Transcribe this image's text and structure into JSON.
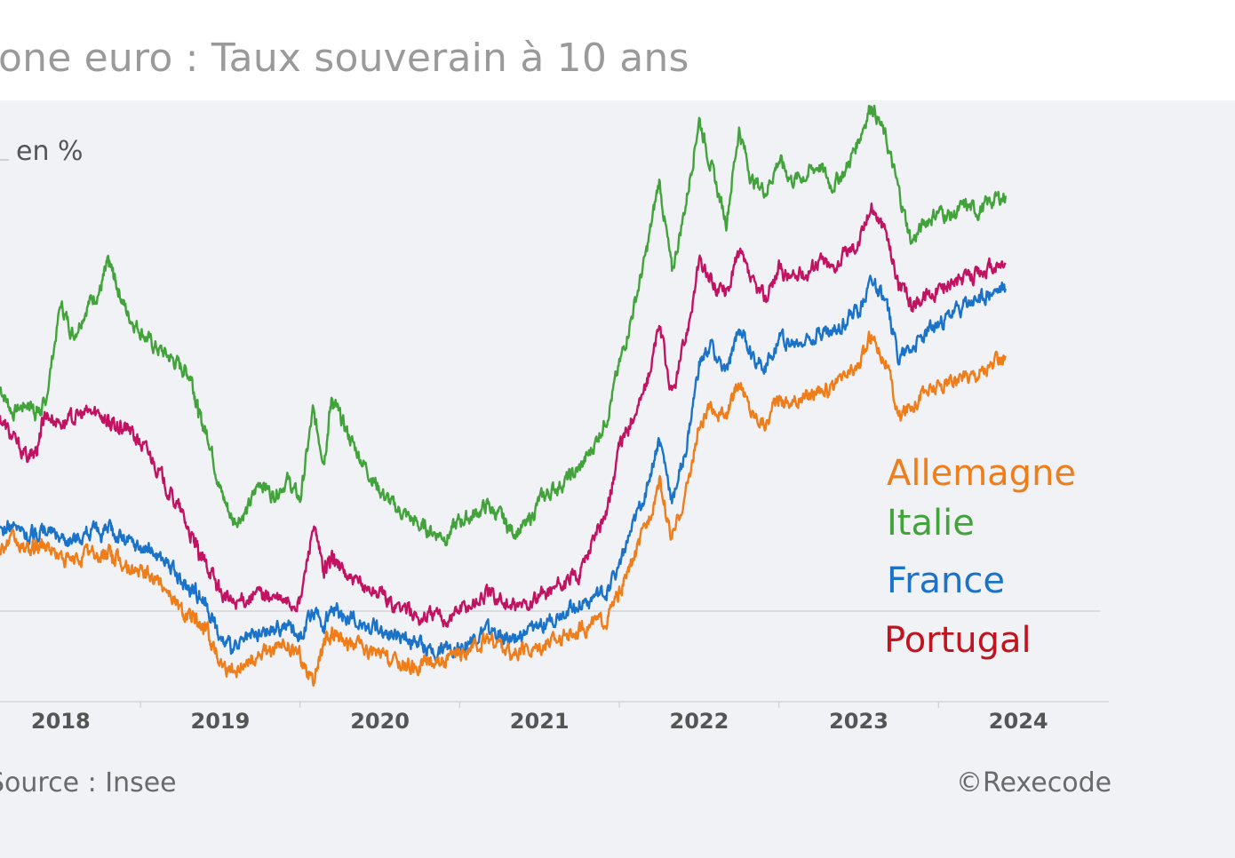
{
  "header": {
    "title": "one euro : Taux souverain à 10 ans"
  },
  "footer": {
    "source": "Source : Insee",
    "copyright": "©Rexecode"
  },
  "colors": {
    "Allemagne": "#ee7d1a",
    "Italie": "#41a33a",
    "France": "#1a73c8",
    "Portugal": "#c21262",
    "Portugal_label": "#c0141e",
    "axis_text": "#555555",
    "gridline": "#d6d6d6"
  },
  "chart_data": {
    "type": "line",
    "title": "one euro : Taux souverain à 10 ans",
    "ylabel": "en %",
    "xlabel": "",
    "x_tick_labels": [
      "2018",
      "2019",
      "2020",
      "2021",
      "2022",
      "2023",
      "2024"
    ],
    "xlim": [
      2017.62,
      2024.5
    ],
    "ylim": [
      -0.85,
      5.0
    ],
    "grid": false,
    "zero_line": true,
    "legend_position": "right",
    "legend_order": [
      "Allemagne",
      "Italie",
      "France",
      "Portugal"
    ],
    "series": [
      {
        "name": "Italie",
        "x": [
          2017.62,
          2017.7,
          2017.8,
          2017.85,
          2017.9,
          2018.0,
          2018.08,
          2018.17,
          2018.25,
          2018.3,
          2018.35,
          2018.42,
          2018.5,
          2018.58,
          2018.67,
          2018.75,
          2018.82,
          2018.87,
          2018.93,
          2019.0,
          2019.08,
          2019.17,
          2019.25,
          2019.33,
          2019.42,
          2019.5,
          2019.58,
          2019.65,
          2019.7,
          2019.75,
          2019.83,
          2019.92,
          2020.0,
          2020.08,
          2020.17,
          2020.25,
          2020.33,
          2020.42,
          2020.5,
          2020.58,
          2020.67,
          2020.75,
          2020.83,
          2020.92,
          2021.0,
          2021.08,
          2021.17,
          2021.25,
          2021.33,
          2021.42,
          2021.5,
          2021.58,
          2021.67,
          2021.75,
          2021.83,
          2021.92,
          2022.0,
          2022.08,
          2022.17,
          2022.25,
          2022.33,
          2022.42,
          2022.5,
          2022.58,
          2022.67,
          2022.75,
          2022.83,
          2022.92,
          2023.0,
          2023.08,
          2023.17,
          2023.25,
          2023.33,
          2023.42,
          2023.5,
          2023.58,
          2023.67,
          2023.75,
          2023.83,
          2023.92
        ],
        "values": [
          2.2,
          1.95,
          2.05,
          1.95,
          2.0,
          3.0,
          2.7,
          3.0,
          3.15,
          3.4,
          3.2,
          2.9,
          2.75,
          2.6,
          2.5,
          2.4,
          2.3,
          1.9,
          1.7,
          1.2,
          0.9,
          1.0,
          1.3,
          1.15,
          1.3,
          1.1,
          1.95,
          1.5,
          2.1,
          1.9,
          1.65,
          1.4,
          1.2,
          1.05,
          0.95,
          0.85,
          0.8,
          0.75,
          0.9,
          0.95,
          1.05,
          0.95,
          0.8,
          0.85,
          1.1,
          1.2,
          1.3,
          1.4,
          1.6,
          1.9,
          2.4,
          2.9,
          3.5,
          4.2,
          3.3,
          4.0,
          4.8,
          4.3,
          3.8,
          4.7,
          4.2,
          4.1,
          4.4,
          4.2,
          4.25,
          4.35,
          4.15,
          4.3,
          4.6,
          4.95,
          4.6,
          4.1,
          3.6,
          3.8,
          3.9,
          3.85,
          3.95,
          3.9,
          4.0,
          4.05
        ]
      },
      {
        "name": "Portugal",
        "x": [
          2017.62,
          2017.7,
          2017.8,
          2017.85,
          2017.9,
          2018.0,
          2018.08,
          2018.17,
          2018.25,
          2018.3,
          2018.35,
          2018.42,
          2018.5,
          2018.58,
          2018.67,
          2018.75,
          2018.82,
          2018.87,
          2018.93,
          2019.0,
          2019.08,
          2019.17,
          2019.25,
          2019.33,
          2019.42,
          2019.5,
          2019.58,
          2019.65,
          2019.7,
          2019.75,
          2019.83,
          2019.92,
          2020.0,
          2020.08,
          2020.17,
          2020.25,
          2020.33,
          2020.42,
          2020.5,
          2020.58,
          2020.67,
          2020.75,
          2020.83,
          2020.92,
          2021.0,
          2021.08,
          2021.17,
          2021.25,
          2021.33,
          2021.42,
          2021.5,
          2021.58,
          2021.67,
          2021.75,
          2021.83,
          2021.92,
          2022.0,
          2022.08,
          2022.17,
          2022.25,
          2022.33,
          2022.42,
          2022.5,
          2022.58,
          2022.67,
          2022.75,
          2022.83,
          2022.92,
          2023.0,
          2023.08,
          2023.17,
          2023.25,
          2023.33,
          2023.42,
          2023.5,
          2023.58,
          2023.67,
          2023.75,
          2023.83,
          2023.92
        ],
        "values": [
          1.9,
          1.7,
          1.5,
          1.6,
          1.95,
          1.85,
          1.9,
          1.95,
          1.95,
          1.85,
          1.8,
          1.8,
          1.65,
          1.5,
          1.2,
          1.0,
          0.75,
          0.55,
          0.45,
          0.2,
          0.1,
          0.15,
          0.2,
          0.15,
          0.1,
          0.1,
          0.85,
          0.4,
          0.55,
          0.45,
          0.3,
          0.25,
          0.2,
          0.1,
          0.05,
          -0.05,
          0.0,
          -0.05,
          0.05,
          0.1,
          0.2,
          0.15,
          0.05,
          0.1,
          0.15,
          0.25,
          0.3,
          0.4,
          0.7,
          1.0,
          1.6,
          1.9,
          2.2,
          2.8,
          2.1,
          2.7,
          3.4,
          3.2,
          3.1,
          3.5,
          3.2,
          3.05,
          3.35,
          3.25,
          3.3,
          3.45,
          3.35,
          3.5,
          3.6,
          3.95,
          3.7,
          3.2,
          3.0,
          3.1,
          3.15,
          3.2,
          3.25,
          3.3,
          3.35,
          3.4
        ]
      },
      {
        "name": "France",
        "x": [
          2017.62,
          2017.7,
          2017.8,
          2017.85,
          2017.9,
          2018.0,
          2018.08,
          2018.17,
          2018.25,
          2018.3,
          2018.35,
          2018.42,
          2018.5,
          2018.58,
          2018.67,
          2018.75,
          2018.82,
          2018.87,
          2018.93,
          2019.0,
          2019.08,
          2019.17,
          2019.25,
          2019.33,
          2019.42,
          2019.5,
          2019.58,
          2019.65,
          2019.7,
          2019.75,
          2019.83,
          2019.92,
          2020.0,
          2020.08,
          2020.17,
          2020.25,
          2020.33,
          2020.42,
          2020.5,
          2020.58,
          2020.67,
          2020.75,
          2020.83,
          2020.92,
          2021.0,
          2021.08,
          2021.17,
          2021.25,
          2021.33,
          2021.42,
          2021.5,
          2021.58,
          2021.67,
          2021.75,
          2021.83,
          2021.92,
          2022.0,
          2022.08,
          2022.17,
          2022.25,
          2022.33,
          2022.42,
          2022.5,
          2022.58,
          2022.67,
          2022.75,
          2022.83,
          2022.92,
          2023.0,
          2023.08,
          2023.17,
          2023.25,
          2023.33,
          2023.42,
          2023.5,
          2023.58,
          2023.67,
          2023.75,
          2023.83,
          2023.92
        ],
        "values": [
          0.8,
          0.85,
          0.75,
          0.8,
          0.82,
          0.75,
          0.72,
          0.8,
          0.78,
          0.82,
          0.76,
          0.7,
          0.65,
          0.6,
          0.5,
          0.3,
          0.25,
          0.2,
          0.05,
          -0.25,
          -0.35,
          -0.25,
          -0.2,
          -0.15,
          -0.1,
          -0.2,
          0.0,
          -0.1,
          0.05,
          0.0,
          -0.05,
          -0.1,
          -0.15,
          -0.2,
          -0.25,
          -0.3,
          -0.35,
          -0.35,
          -0.3,
          -0.25,
          -0.15,
          -0.2,
          -0.25,
          -0.2,
          -0.1,
          -0.05,
          0.05,
          0.1,
          0.15,
          0.2,
          0.5,
          0.8,
          1.2,
          1.7,
          1.1,
          1.6,
          2.4,
          2.6,
          2.3,
          2.8,
          2.5,
          2.4,
          2.7,
          2.6,
          2.65,
          2.75,
          2.7,
          2.85,
          2.95,
          3.25,
          3.0,
          2.5,
          2.6,
          2.7,
          2.8,
          2.9,
          3.0,
          3.05,
          3.1,
          3.15
        ]
      },
      {
        "name": "Allemagne",
        "x": [
          2017.62,
          2017.7,
          2017.8,
          2017.85,
          2017.9,
          2018.0,
          2018.08,
          2018.17,
          2018.25,
          2018.3,
          2018.35,
          2018.42,
          2018.5,
          2018.58,
          2018.67,
          2018.75,
          2018.82,
          2018.87,
          2018.93,
          2019.0,
          2019.08,
          2019.17,
          2019.25,
          2019.33,
          2019.42,
          2019.5,
          2019.58,
          2019.65,
          2019.7,
          2019.75,
          2019.83,
          2019.92,
          2020.0,
          2020.08,
          2020.17,
          2020.25,
          2020.33,
          2020.42,
          2020.5,
          2020.58,
          2020.67,
          2020.75,
          2020.83,
          2020.92,
          2021.0,
          2021.08,
          2021.17,
          2021.25,
          2021.33,
          2021.42,
          2021.5,
          2021.58,
          2021.67,
          2021.75,
          2021.83,
          2021.92,
          2022.0,
          2022.08,
          2022.17,
          2022.25,
          2022.33,
          2022.42,
          2022.5,
          2022.58,
          2022.67,
          2022.75,
          2022.83,
          2022.92,
          2023.0,
          2023.08,
          2023.17,
          2023.25,
          2023.33,
          2023.42,
          2023.5,
          2023.58,
          2023.67,
          2023.75,
          2023.83,
          2023.92
        ],
        "values": [
          0.65,
          0.7,
          0.6,
          0.65,
          0.68,
          0.55,
          0.5,
          0.6,
          0.55,
          0.6,
          0.52,
          0.45,
          0.4,
          0.35,
          0.25,
          0.05,
          -0.05,
          -0.1,
          -0.2,
          -0.45,
          -0.55,
          -0.45,
          -0.4,
          -0.35,
          -0.3,
          -0.4,
          -0.65,
          -0.3,
          -0.2,
          -0.25,
          -0.3,
          -0.35,
          -0.4,
          -0.45,
          -0.5,
          -0.5,
          -0.45,
          -0.45,
          -0.4,
          -0.35,
          -0.25,
          -0.3,
          -0.4,
          -0.35,
          -0.3,
          -0.25,
          -0.2,
          -0.15,
          -0.1,
          -0.05,
          0.2,
          0.5,
          0.85,
          1.3,
          0.7,
          1.2,
          1.8,
          2.0,
          1.9,
          2.25,
          1.95,
          1.85,
          2.1,
          2.05,
          2.1,
          2.2,
          2.15,
          2.3,
          2.4,
          2.7,
          2.45,
          1.9,
          2.05,
          2.15,
          2.2,
          2.25,
          2.3,
          2.35,
          2.4,
          2.5
        ]
      }
    ]
  }
}
